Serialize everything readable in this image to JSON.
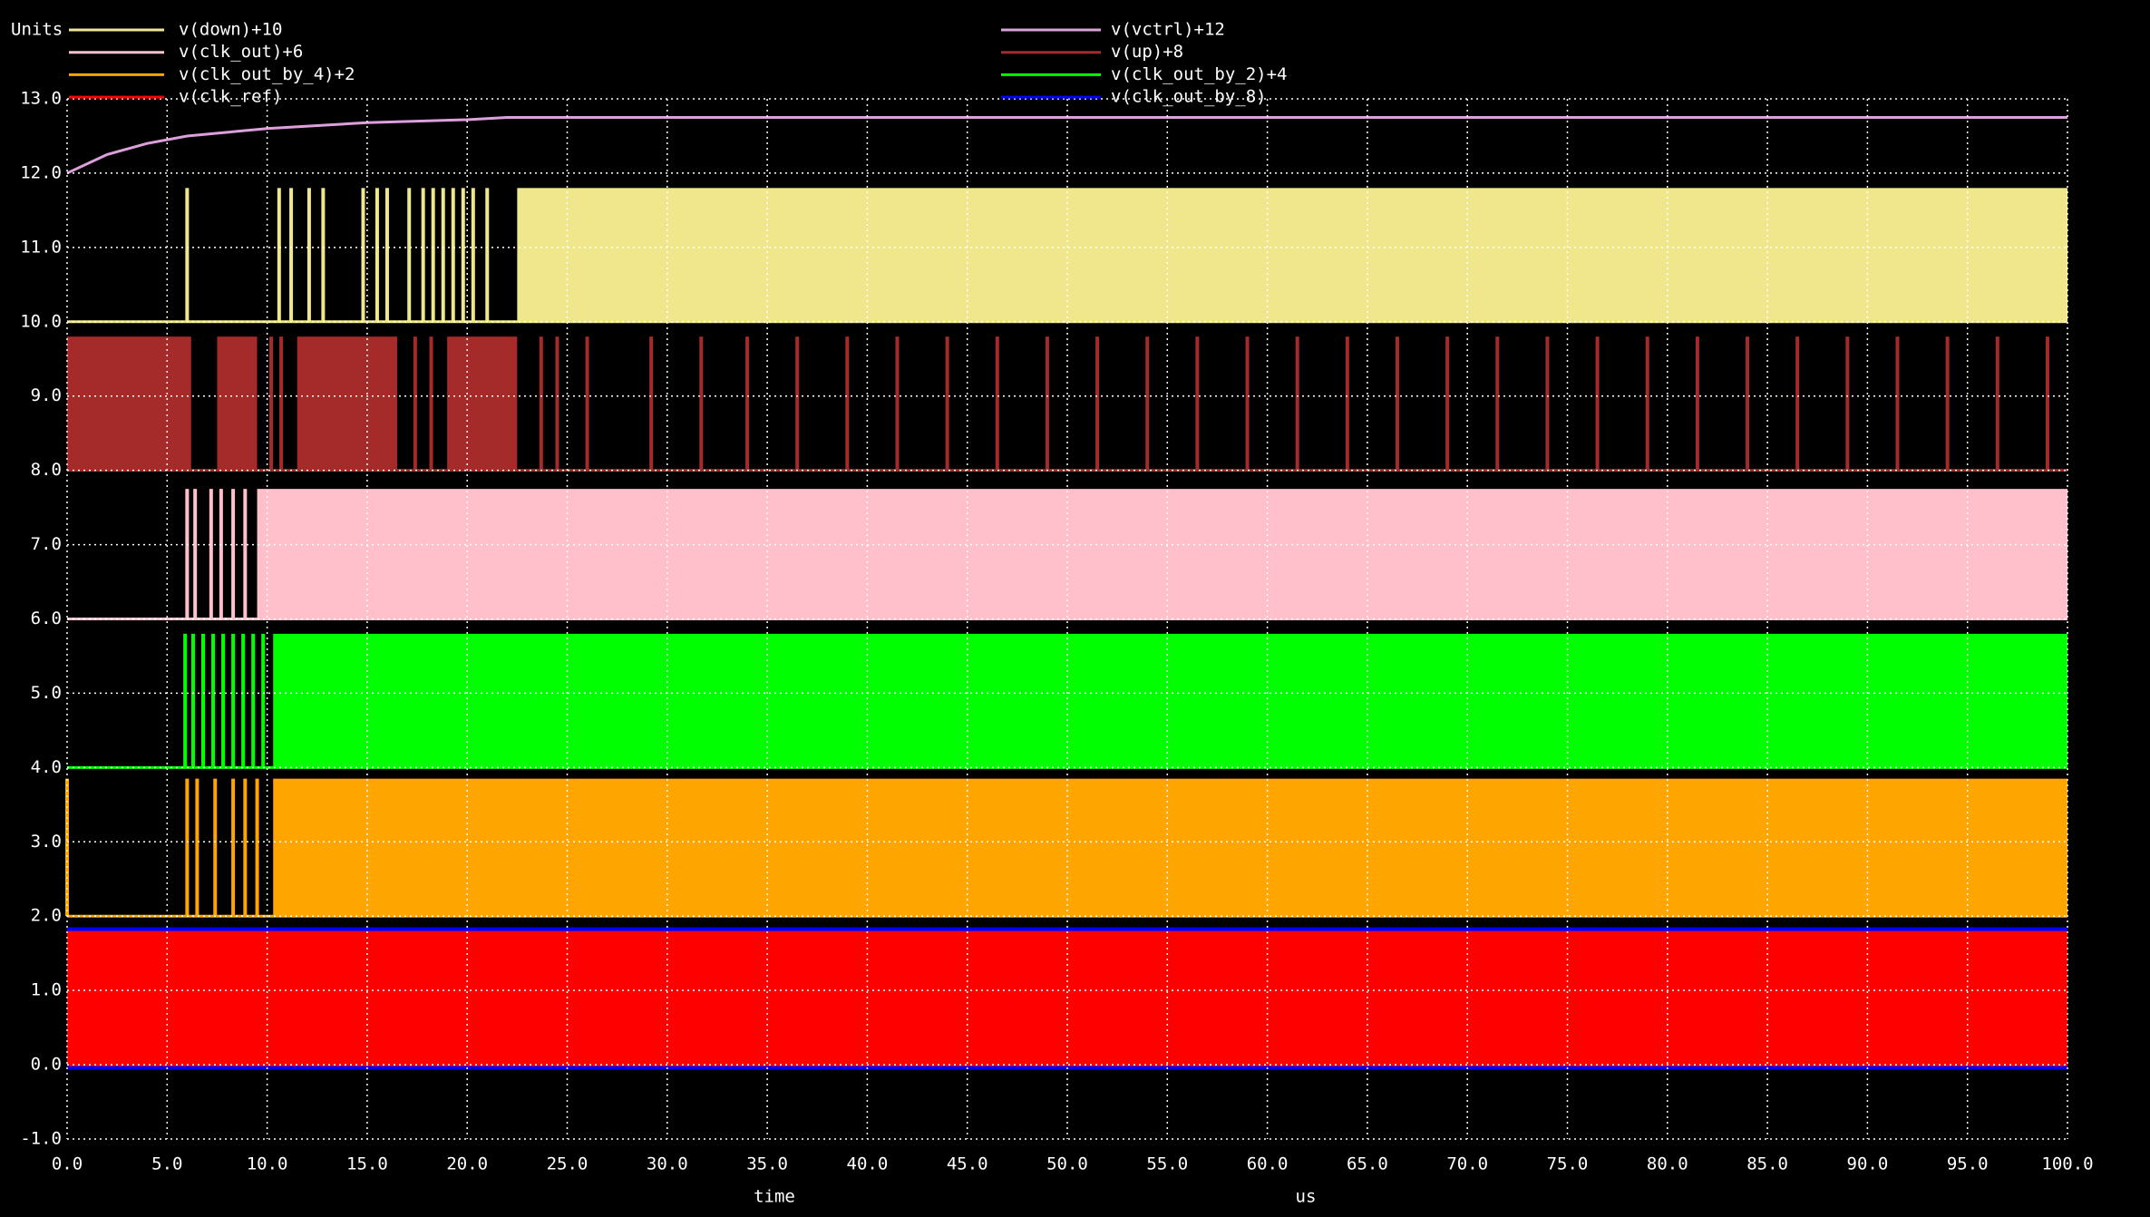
{
  "chart_data": {
    "type": "waveform",
    "y_unit_label": "Units",
    "xlabel": "time",
    "x_unit": "us",
    "xlim": [
      0,
      100
    ],
    "xticks": [
      {
        "value": 0,
        "label": "0.0"
      },
      {
        "value": 5,
        "label": "5.0"
      },
      {
        "value": 10,
        "label": "10.0"
      },
      {
        "value": 15,
        "label": "15.0"
      },
      {
        "value": 20,
        "label": "20.0"
      },
      {
        "value": 25,
        "label": "25.0"
      },
      {
        "value": 30,
        "label": "30.0"
      },
      {
        "value": 35,
        "label": "35.0"
      },
      {
        "value": 40,
        "label": "40.0"
      },
      {
        "value": 45,
        "label": "45.0"
      },
      {
        "value": 50,
        "label": "50.0"
      },
      {
        "value": 55,
        "label": "55.0"
      },
      {
        "value": 60,
        "label": "60.0"
      },
      {
        "value": 65,
        "label": "65.0"
      },
      {
        "value": 70,
        "label": "70.0"
      },
      {
        "value": 75,
        "label": "75.0"
      },
      {
        "value": 80,
        "label": "80.0"
      },
      {
        "value": 85,
        "label": "85.0"
      },
      {
        "value": 90,
        "label": "90.0"
      },
      {
        "value": 95,
        "label": "95.0"
      },
      {
        "value": 100,
        "label": "100.0"
      }
    ],
    "ylim": [
      -1,
      13
    ],
    "yticks": [
      {
        "value": -1,
        "label": "-1.0"
      },
      {
        "value": 0,
        "label": "0.0"
      },
      {
        "value": 1,
        "label": "1.0"
      },
      {
        "value": 2,
        "label": "2.0"
      },
      {
        "value": 3,
        "label": "3.0"
      },
      {
        "value": 4,
        "label": "4.0"
      },
      {
        "value": 5,
        "label": "5.0"
      },
      {
        "value": 6,
        "label": "6.0"
      },
      {
        "value": 7,
        "label": "7.0"
      },
      {
        "value": 8,
        "label": "8.0"
      },
      {
        "value": 9,
        "label": "9.0"
      },
      {
        "value": 10,
        "label": "10.0"
      },
      {
        "value": 11,
        "label": "11.0"
      },
      {
        "value": 12,
        "label": "12.0"
      },
      {
        "value": 13,
        "label": "13.0"
      }
    ],
    "grid": true,
    "series": [
      {
        "name": "v(down)+10",
        "color": "#f0e68c",
        "low": 10,
        "high": 11.8,
        "bands": [
          [
            22.5,
            100
          ]
        ],
        "pulses": [
          6.0,
          10.6,
          11.2,
          12.1,
          12.8,
          14.8,
          15.5,
          16.0,
          17.1,
          17.8,
          18.3,
          18.8,
          19.3,
          19.8,
          20.3,
          21.0
        ]
      },
      {
        "name": "v(vctrl)+12",
        "color": "#dda0dd",
        "x": [
          0,
          2,
          4,
          6,
          8,
          10,
          15,
          20,
          22,
          30,
          100
        ],
        "values": [
          12.0,
          12.25,
          12.4,
          12.5,
          12.55,
          12.6,
          12.68,
          12.72,
          12.75,
          12.75,
          12.75
        ]
      },
      {
        "name": "v(clk_out)+6",
        "color": "#ffc0cb",
        "low": 6,
        "high": 7.75,
        "bands": [
          [
            9.5,
            100
          ]
        ],
        "pulses": [
          6.0,
          6.4,
          7.2,
          7.7,
          8.3,
          8.9
        ]
      },
      {
        "name": "v(up)+8",
        "color": "#a52a2a",
        "low": 8,
        "high": 9.8,
        "bands": [
          [
            0,
            6.2
          ],
          [
            7.5,
            9.5
          ],
          [
            11.5,
            16.5
          ],
          [
            19.0,
            22.5
          ]
        ],
        "pulses": [
          10.2,
          10.7,
          17.4,
          18.2,
          23.7,
          24.5,
          26.0,
          29.2,
          31.7,
          34.0,
          36.5,
          39.0,
          41.5,
          44.0,
          46.5,
          49.0,
          51.5,
          54.0,
          56.5,
          59.0,
          61.5,
          64.0,
          66.5,
          69.0,
          71.5,
          74.0,
          76.5,
          79.0,
          81.5,
          84.0,
          86.5,
          89.0,
          91.5,
          94.0,
          96.5,
          99.0
        ]
      },
      {
        "name": "v(clk_out_by_4)+2",
        "color": "#ffa500",
        "low": 2,
        "high": 3.85,
        "bands": [
          [
            10.3,
            100
          ]
        ],
        "pulses": [
          0.0,
          6.0,
          6.5,
          7.4,
          8.3,
          8.9,
          9.5
        ]
      },
      {
        "name": "v(clk_out_by_2)+4",
        "color": "#00ff00",
        "low": 4,
        "high": 5.8,
        "bands": [
          [
            10.3,
            100
          ]
        ],
        "pulses": [
          5.9,
          6.3,
          6.8,
          7.3,
          7.8,
          8.3,
          8.8,
          9.3,
          9.8
        ]
      },
      {
        "name": "v(clk_ref)",
        "color": "#ff0000",
        "low": 0,
        "high": 1.8,
        "bands": [
          [
            0,
            100
          ]
        ],
        "pulses": []
      },
      {
        "name": "v(clk_out_by_8)",
        "color": "#0000ff",
        "low": -0.05,
        "high": 1.85,
        "bands": [
          [
            0,
            100
          ]
        ],
        "pulses": []
      }
    ]
  }
}
